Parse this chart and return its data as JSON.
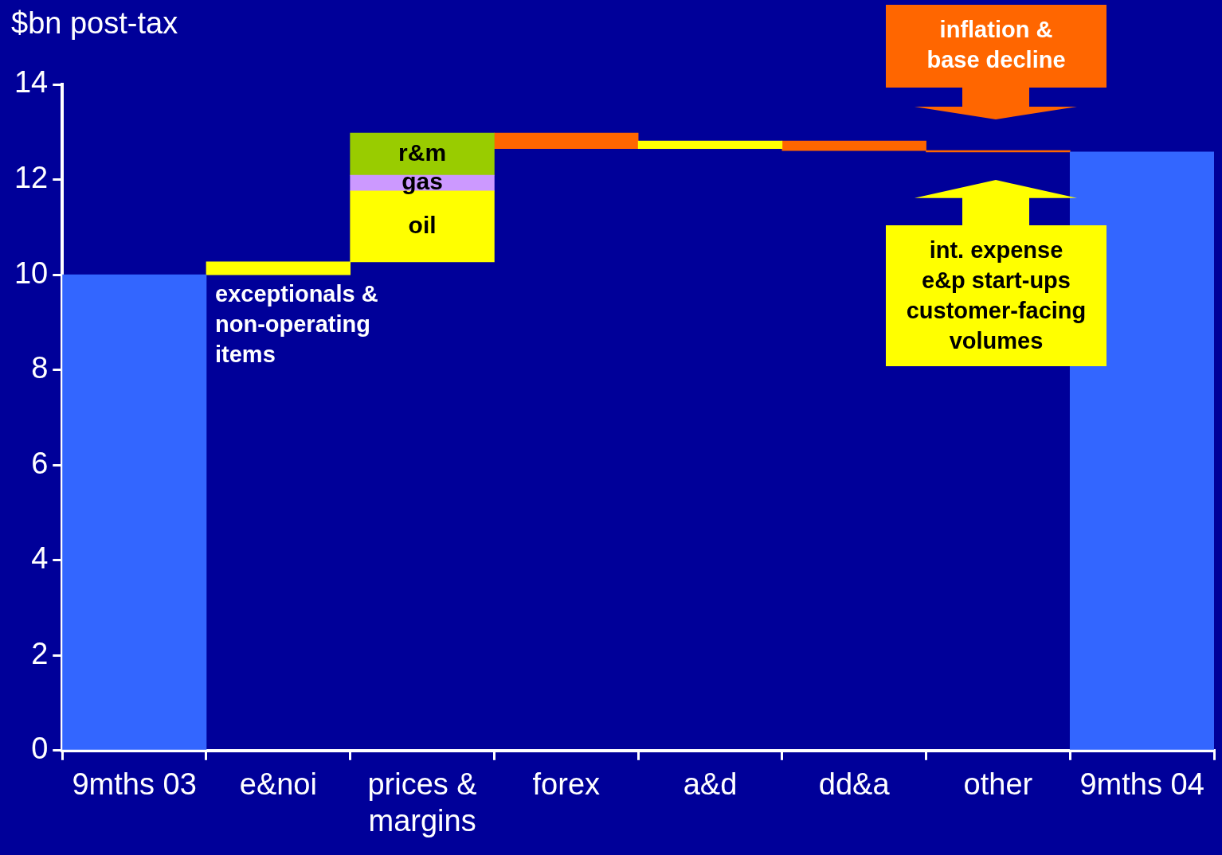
{
  "chart_data": {
    "type": "bar",
    "ylabel": "$bn post-tax",
    "categories": [
      "9mths 03",
      "e&noi",
      "prices & margins",
      "forex",
      "a&d",
      "dd&a",
      "other",
      "9mths 04"
    ],
    "series": [
      {
        "color": "#3366ff",
        "values": [
          10,
          null,
          null,
          null,
          null,
          null,
          null,
          12.58
        ]
      },
      {
        "color": "#ffff00",
        "base": [
          null,
          10,
          null,
          null,
          12.65,
          null,
          null,
          null
        ],
        "values": [
          null,
          0.27,
          null,
          null,
          0.16,
          null,
          null,
          null
        ]
      },
      {
        "name": "oil",
        "color": "#ffff00",
        "base": [
          null,
          null,
          10.27,
          null,
          null,
          null,
          null,
          null
        ],
        "values": [
          null,
          null,
          1.49,
          null,
          null,
          null,
          null,
          null
        ]
      },
      {
        "name": "gas",
        "color": "#cc99ff",
        "base": [
          null,
          null,
          11.76,
          null,
          null,
          null,
          null,
          null
        ],
        "values": [
          null,
          null,
          0.33,
          null,
          null,
          null,
          null,
          null
        ]
      },
      {
        "name": "r&m",
        "color": "#99cc00",
        "base": [
          null,
          null,
          12.09,
          null,
          null,
          null,
          null,
          null
        ],
        "values": [
          null,
          null,
          0.89,
          null,
          null,
          null,
          null,
          null
        ]
      },
      {
        "color": "#ff6600",
        "base": [
          null,
          null,
          null,
          12.98,
          null,
          12.81,
          12.61,
          null
        ],
        "values": [
          null,
          null,
          null,
          -0.33,
          null,
          -0.2,
          -0.03,
          null
        ]
      }
    ],
    "ylim": [
      0,
      14
    ],
    "yticks": [
      0,
      2,
      4,
      6,
      8,
      10,
      12,
      14
    ],
    "grid": false,
    "legend": false,
    "annotations": [
      "exceptionals &\nnon-operating\nitems",
      "inflation &\nbase decline",
      "int. expense\ne&p start-ups\ncustomer-facing\nvolumes"
    ]
  }
}
